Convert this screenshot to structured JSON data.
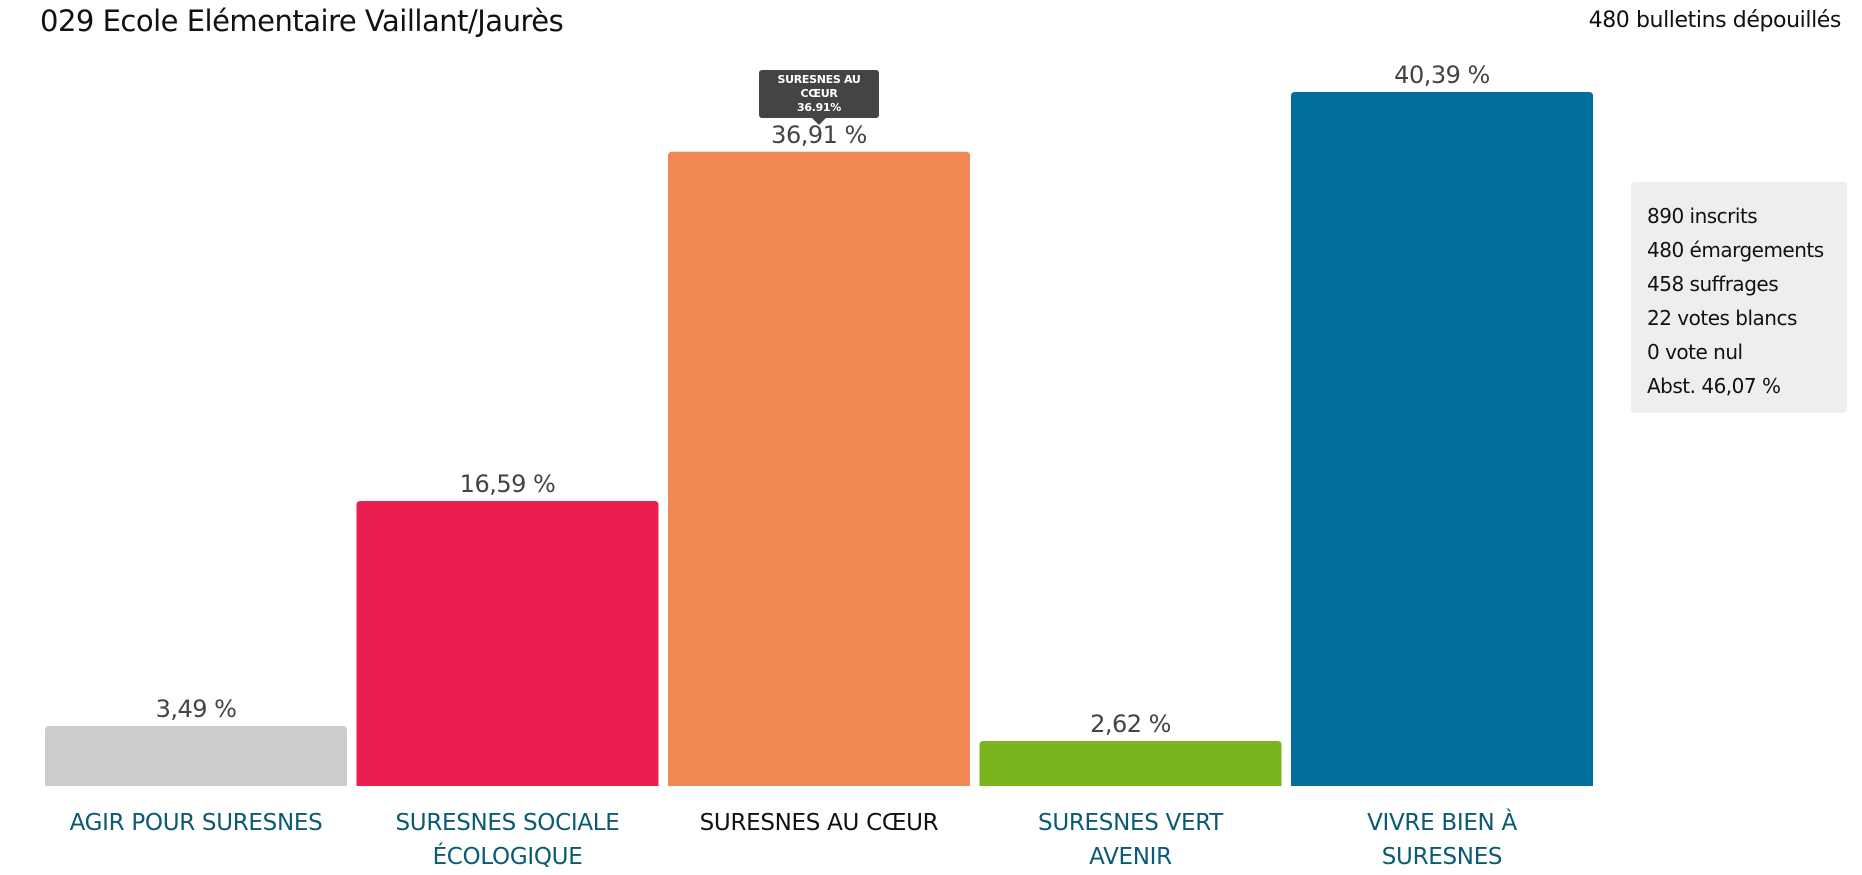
{
  "header": {
    "title": "029 Ecole Elémentaire Vaillant/Jaurès",
    "ballots": "480 bulletins dépouillés"
  },
  "stats": [
    "890 inscrits",
    "480 émargements",
    "458 suffrages",
    "22 votes blancs",
    "0 vote nul",
    "Abst. 46,07 %"
  ],
  "tooltip": {
    "name": "SURESNES AU CŒUR",
    "value": "36.91%"
  },
  "chart_data": {
    "type": "bar",
    "categories": [
      "AGIR POUR SURESNES",
      "SURESNES SOCIALE ÉCOLOGIQUE",
      "SURESNES AU CŒUR",
      "SURESNES VERT AVENIR",
      "VIVRE BIEN À SURESNES"
    ],
    "category_lines": [
      [
        "AGIR POUR SURESNES"
      ],
      [
        "SURESNES SOCIALE",
        "ÉCOLOGIQUE"
      ],
      [
        "SURESNES AU CŒUR"
      ],
      [
        "SURESNES VERT",
        "AVENIR"
      ],
      [
        "VIVRE BIEN À",
        "SURESNES"
      ]
    ],
    "values": [
      3.49,
      16.59,
      36.91,
      2.62,
      40.39
    ],
    "labels": [
      "3,49 %",
      "16,59 %",
      "36,91 %",
      "2,62 %",
      "40,39 %"
    ],
    "colors": [
      "#cccccc",
      "#ea1f4f",
      "#ef8853",
      "#7ab51f",
      "#026e9b"
    ],
    "selected": 2,
    "ylim": [
      0,
      40.39
    ],
    "grid": false
  }
}
